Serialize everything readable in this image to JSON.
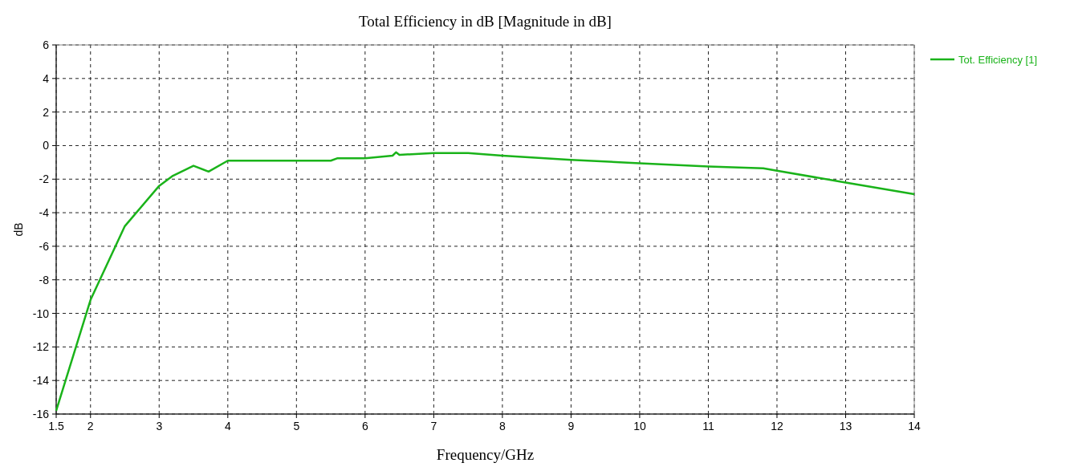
{
  "chart_data": {
    "type": "line",
    "title": "Total Efficiency in dB [Magnitude in dB]",
    "xlabel": "Frequency/GHz",
    "ylabel": "dB",
    "x": [
      1.5,
      2,
      2.5,
      3,
      3.2,
      3.5,
      3.72,
      4,
      5.5,
      5.6,
      6,
      6.4,
      6.45,
      6.5,
      7,
      7.5,
      8,
      9,
      10,
      11,
      11.8,
      12,
      13,
      14
    ],
    "series": [
      {
        "name": "Tot. Efficiency [1]",
        "color": "#1ab31a",
        "values": [
          -15.8,
          -9.2,
          -4.8,
          -2.4,
          -1.8,
          -1.2,
          -1.55,
          -0.9,
          -0.9,
          -0.75,
          -0.75,
          -0.6,
          -0.4,
          -0.55,
          -0.45,
          -0.45,
          -0.6,
          -0.85,
          -1.05,
          -1.25,
          -1.35,
          -1.5,
          -2.2,
          -2.9
        ]
      }
    ],
    "xlim": [
      1.5,
      14
    ],
    "xticks": [
      1.5,
      2,
      3,
      4,
      5,
      6,
      7,
      8,
      9,
      10,
      11,
      12,
      13,
      14
    ],
    "ylim": [
      -16,
      6
    ],
    "yticks": [
      -16,
      -14,
      -12,
      -10,
      -8,
      -6,
      -4,
      -2,
      0,
      2,
      4,
      6
    ],
    "grid": true,
    "legend": "top right",
    "marker": "none",
    "line_style": "solid"
  }
}
